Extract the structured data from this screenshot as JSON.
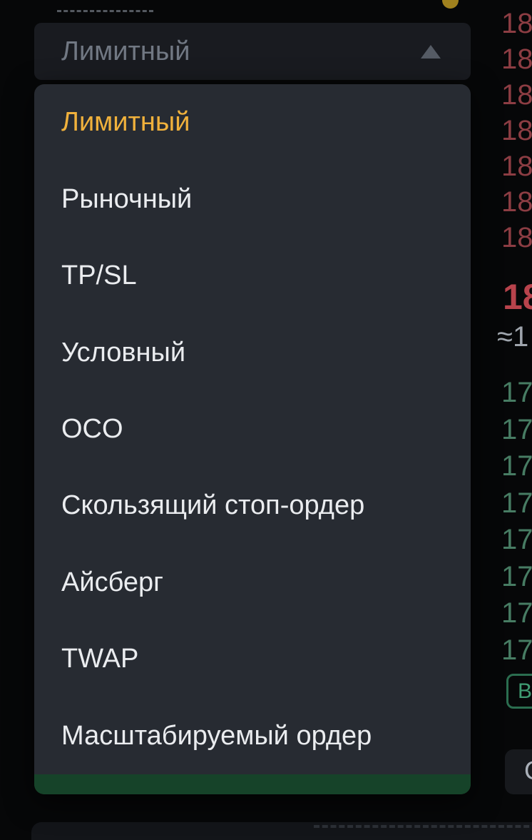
{
  "selector": {
    "value": "Лимитный",
    "state_icon": "chevron-up-icon"
  },
  "dropdown": {
    "items": [
      {
        "label": "Лимитный",
        "selected": true
      },
      {
        "label": "Рыночный",
        "selected": false
      },
      {
        "label": "TP/SL",
        "selected": false
      },
      {
        "label": "Условный",
        "selected": false
      },
      {
        "label": "OCO",
        "selected": false
      },
      {
        "label": "Скользящий стоп-ордер",
        "selected": false
      },
      {
        "label": "Айсберг",
        "selected": false
      },
      {
        "label": "TWAP",
        "selected": false
      },
      {
        "label": "Масштабируемый ордер",
        "selected": false
      }
    ]
  },
  "order_book": {
    "asks": [
      "18",
      "18",
      "18",
      "18",
      "18",
      "18",
      "18"
    ],
    "last_price": "18",
    "approx_value": "≈1",
    "bids": [
      "17",
      "17",
      "17",
      "17",
      "17",
      "17",
      "17",
      "17"
    ],
    "buy_badge": "В",
    "unit_button": "С"
  },
  "colors": {
    "accent_selected": "#f0b13c",
    "panel_bg": "#272b32",
    "panel_green_strip": "#164329",
    "ask_red": "#8c3d43",
    "last_price_red": "#b8434c",
    "bid_green": "#477c63",
    "badge_green": "#3f9b72",
    "item_text": "#eaecef",
    "selector_text": "#717883",
    "coin_dot_yellow": "#a0811e"
  }
}
